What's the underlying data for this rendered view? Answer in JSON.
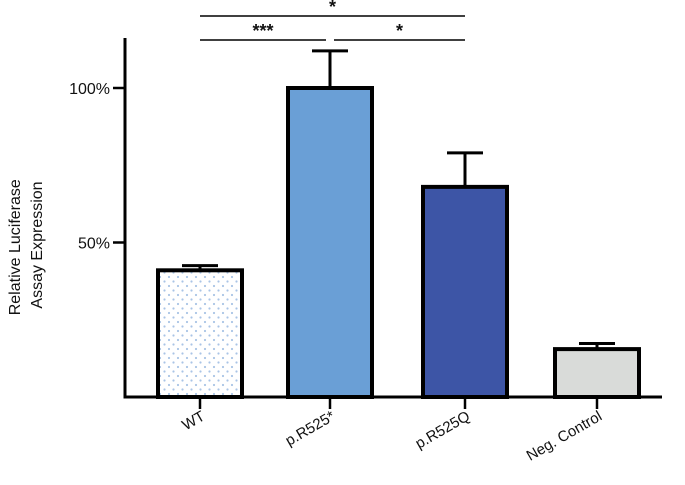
{
  "chart_data": {
    "type": "bar",
    "title": "",
    "xlabel": "",
    "ylabel_lines": [
      "Relative Luciferase",
      "Assay Expression"
    ],
    "categories": [
      "WT",
      "p.R525*",
      "p.R525Q",
      "Neg. Control"
    ],
    "values": [
      41,
      100,
      68,
      15.5
    ],
    "errors": [
      1.5,
      12,
      11,
      1.8
    ],
    "ylim": [
      0,
      115
    ],
    "yticks": [
      50,
      100
    ],
    "ytick_labels": [
      "50%",
      "100%"
    ],
    "grid": false,
    "bar_styles": [
      {
        "fill": "#ffffff",
        "pattern": "dots",
        "dot_color": "#a9c4e6"
      },
      {
        "fill": "#6a9fd6"
      },
      {
        "fill": "#3d55a6"
      },
      {
        "fill": "#d9dbd9"
      }
    ],
    "significance": [
      {
        "from": 0,
        "to": 1,
        "label": "***"
      },
      {
        "from": 1,
        "to": 2,
        "label": "*"
      },
      {
        "from": 0,
        "to": 2,
        "label": "*"
      }
    ]
  }
}
